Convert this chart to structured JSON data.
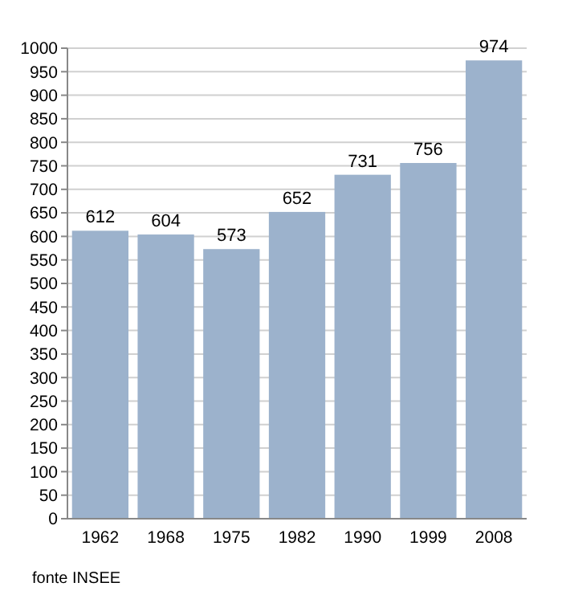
{
  "chart_data": {
    "type": "bar",
    "categories": [
      "1962",
      "1968",
      "1975",
      "1982",
      "1990",
      "1999",
      "2008"
    ],
    "values": [
      612,
      604,
      573,
      652,
      731,
      756,
      974
    ],
    "color": "#9cb2cc",
    "ylim": [
      0,
      1000
    ],
    "yticks": [
      0,
      50,
      100,
      150,
      200,
      250,
      300,
      350,
      400,
      450,
      500,
      550,
      600,
      650,
      700,
      750,
      800,
      850,
      900,
      950,
      1000
    ],
    "grid": "y",
    "data_labels": true,
    "annotations": [
      "fonte INSEE"
    ]
  }
}
